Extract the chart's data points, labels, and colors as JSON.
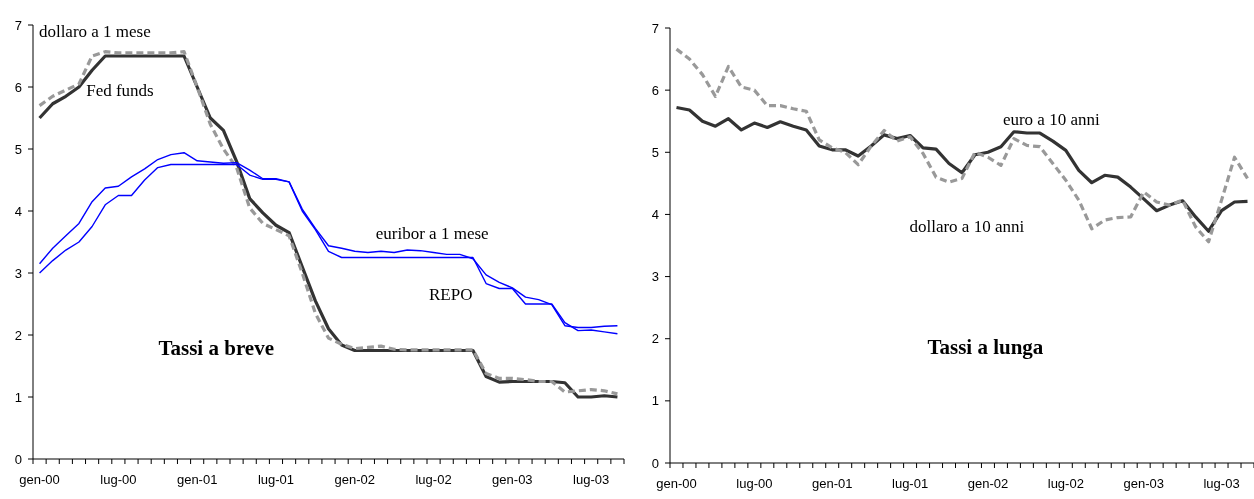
{
  "chart_data": [
    {
      "type": "line",
      "title": "Tassi a breve",
      "categories": [
        "gen-00",
        null,
        null,
        null,
        null,
        null,
        "lug-00",
        null,
        null,
        null,
        null,
        null,
        "gen-01",
        null,
        null,
        null,
        null,
        null,
        "lug-01",
        null,
        null,
        null,
        null,
        null,
        "gen-02",
        null,
        null,
        null,
        null,
        null,
        "lug-02",
        null,
        null,
        null,
        null,
        null,
        "gen-03",
        null,
        null,
        null,
        null,
        null,
        "lug-03",
        null,
        null
      ],
      "ylim": [
        0,
        7
      ],
      "yticks": [
        0,
        1,
        2,
        3,
        4,
        5,
        6,
        7
      ],
      "grid": false,
      "series": [
        {
          "name": "Fed funds",
          "color": "#333333",
          "line_style": "solid",
          "values": [
            5.5,
            5.73,
            5.85,
            6.0,
            6.27,
            6.5,
            6.5,
            6.5,
            6.5,
            6.5,
            6.5,
            6.5,
            6.0,
            5.5,
            5.3,
            4.8,
            4.2,
            3.97,
            3.77,
            3.65,
            3.1,
            2.55,
            2.1,
            1.84,
            1.75,
            1.75,
            1.75,
            1.75,
            1.75,
            1.75,
            1.75,
            1.75,
            1.75,
            1.75,
            1.33,
            1.24,
            1.25,
            1.25,
            1.25,
            1.25,
            1.23,
            1.0,
            1.0,
            1.02,
            1.0
          ]
        },
        {
          "name": "dollaro a 1 mese",
          "color": "#999999",
          "line_style": "dashed",
          "values": [
            5.7,
            5.85,
            5.95,
            6.05,
            6.5,
            6.57,
            6.55,
            6.55,
            6.55,
            6.55,
            6.55,
            6.57,
            6.0,
            5.4,
            5.0,
            4.7,
            4.05,
            3.8,
            3.7,
            3.6,
            3.0,
            2.35,
            1.95,
            1.85,
            1.78,
            1.8,
            1.82,
            1.77,
            1.76,
            1.76,
            1.76,
            1.76,
            1.76,
            1.76,
            1.38,
            1.3,
            1.3,
            1.28,
            1.25,
            1.25,
            1.08,
            1.1,
            1.12,
            1.1,
            1.05
          ]
        },
        {
          "name": "euribor a 1 mese",
          "color": "#0000ff",
          "line_style": "solid",
          "values": [
            3.15,
            3.4,
            3.6,
            3.8,
            4.15,
            4.37,
            4.4,
            4.55,
            4.68,
            4.83,
            4.91,
            4.94,
            4.81,
            4.79,
            4.77,
            4.78,
            4.66,
            4.52,
            4.52,
            4.47,
            4.03,
            3.72,
            3.44,
            3.4,
            3.35,
            3.33,
            3.35,
            3.33,
            3.37,
            3.36,
            3.33,
            3.3,
            3.3,
            3.23,
            2.97,
            2.85,
            2.76,
            2.61,
            2.57,
            2.49,
            2.15,
            2.12,
            2.12,
            2.14,
            2.15
          ]
        },
        {
          "name": "REPO",
          "color": "#0000ff",
          "line_style": "solid",
          "values": [
            3.0,
            3.2,
            3.37,
            3.5,
            3.75,
            4.1,
            4.25,
            4.25,
            4.5,
            4.7,
            4.75,
            4.75,
            4.75,
            4.75,
            4.75,
            4.75,
            4.58,
            4.51,
            4.51,
            4.47,
            4.0,
            3.7,
            3.35,
            3.25,
            3.25,
            3.25,
            3.25,
            3.25,
            3.25,
            3.25,
            3.25,
            3.25,
            3.25,
            3.25,
            2.83,
            2.75,
            2.75,
            2.5,
            2.5,
            2.5,
            2.2,
            2.07,
            2.08,
            2.05,
            2.02
          ]
        }
      ]
    },
    {
      "type": "line",
      "title": "Tassi a lunga",
      "categories": [
        "gen-00",
        null,
        null,
        null,
        null,
        null,
        "lug-00",
        null,
        null,
        null,
        null,
        null,
        "gen-01",
        null,
        null,
        null,
        null,
        null,
        "lug-01",
        null,
        null,
        null,
        null,
        null,
        "gen-02",
        null,
        null,
        null,
        null,
        null,
        "lug-02",
        null,
        null,
        null,
        null,
        null,
        "gen-03",
        null,
        null,
        null,
        null,
        null,
        "lug-03",
        null,
        null
      ],
      "ylim": [
        0,
        7
      ],
      "yticks": [
        0,
        1,
        2,
        3,
        4,
        5,
        6,
        7
      ],
      "grid": false,
      "series": [
        {
          "name": "euro a 10 anni",
          "color": "#333333",
          "line_style": "solid",
          "values": [
            5.72,
            5.68,
            5.5,
            5.42,
            5.54,
            5.36,
            5.47,
            5.4,
            5.49,
            5.42,
            5.36,
            5.1,
            5.04,
            5.04,
            4.94,
            5.1,
            5.28,
            5.22,
            5.27,
            5.07,
            5.05,
            4.82,
            4.67,
            4.96,
            5.0,
            5.09,
            5.33,
            5.31,
            5.31,
            5.18,
            5.03,
            4.71,
            4.51,
            4.63,
            4.6,
            4.44,
            4.25,
            4.06,
            4.15,
            4.22,
            3.96,
            3.73,
            4.06,
            4.2,
            4.21
          ]
        },
        {
          "name": "dollaro a 10 anni",
          "color": "#999999",
          "line_style": "dashed",
          "values": [
            6.66,
            6.5,
            6.25,
            5.9,
            6.38,
            6.05,
            6.0,
            5.75,
            5.75,
            5.7,
            5.66,
            5.2,
            5.07,
            5.0,
            4.8,
            5.1,
            5.35,
            5.18,
            5.25,
            4.98,
            4.6,
            4.52,
            4.58,
            5.0,
            4.92,
            4.79,
            5.22,
            5.11,
            5.09,
            4.82,
            4.55,
            4.23,
            3.77,
            3.91,
            3.95,
            3.96,
            4.36,
            4.2,
            4.15,
            4.23,
            3.8,
            3.56,
            4.23,
            4.92,
            4.58
          ]
        }
      ]
    }
  ]
}
